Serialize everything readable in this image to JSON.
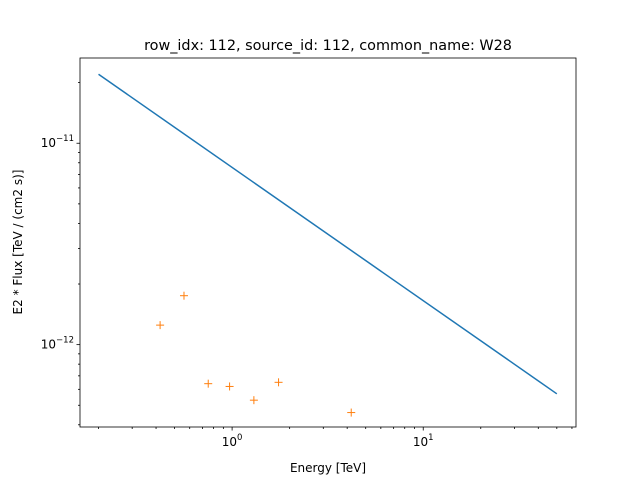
{
  "chart_data": {
    "type": "line",
    "title": "row_idx: 112, source_id: 112, common_name: W28",
    "xlabel": "Energy [TeV]",
    "ylabel": "E2 * Flux [TeV / (cm2 s)]",
    "xscale": "log",
    "yscale": "log",
    "xlim": [
      0.16,
      63
    ],
    "ylim": [
      3.9e-13,
      2.65e-11
    ],
    "grid": false,
    "x_ticks": [
      {
        "value": 1,
        "base": "10",
        "exponent": "0"
      },
      {
        "value": 10,
        "base": "10",
        "exponent": "1"
      }
    ],
    "y_ticks": [
      {
        "value": 1e-12,
        "base": "10",
        "exponent": "−12"
      },
      {
        "value": 1e-11,
        "base": "10",
        "exponent": "−11"
      }
    ],
    "series": [
      {
        "kind": "line",
        "color": "#1f77b4",
        "x": [
          0.2,
          50
        ],
        "y": [
          2.2e-11,
          5.7e-13
        ]
      },
      {
        "kind": "markers",
        "marker": "+",
        "color": "#ff7f0e",
        "x": [
          0.42,
          0.56,
          0.75,
          0.97,
          1.3,
          1.75,
          4.2
        ],
        "y": [
          1.25e-12,
          1.75e-12,
          6.4e-13,
          6.2e-13,
          5.3e-13,
          6.5e-13,
          4.6e-13
        ]
      }
    ]
  }
}
